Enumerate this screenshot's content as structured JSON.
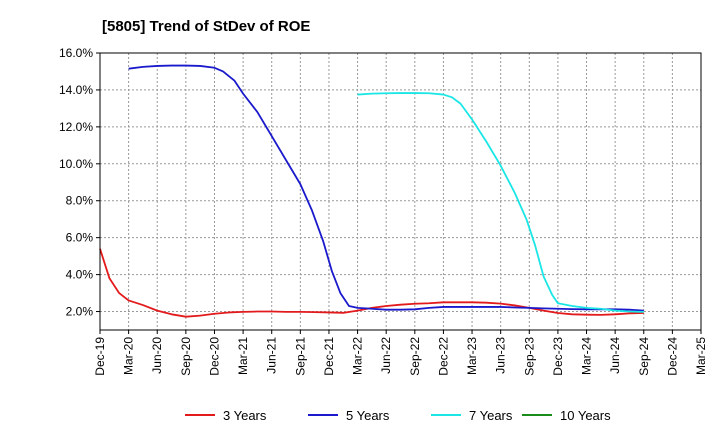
{
  "chart_data": {
    "type": "line",
    "title": "[5805]  Trend of StDev of ROE",
    "xlabel": "",
    "ylabel": "",
    "ylim": [
      1.0,
      16.0
    ],
    "y_ticks": [
      "2.0%",
      "4.0%",
      "6.0%",
      "8.0%",
      "10.0%",
      "12.0%",
      "14.0%",
      "16.0%"
    ],
    "y_tick_values": [
      2,
      4,
      6,
      8,
      10,
      12,
      14,
      16
    ],
    "x_ticks": [
      "Dec-19",
      "Mar-20",
      "Jun-20",
      "Sep-20",
      "Dec-20",
      "Mar-21",
      "Jun-21",
      "Sep-21",
      "Dec-21",
      "Mar-22",
      "Jun-22",
      "Sep-22",
      "Dec-22",
      "Mar-23",
      "Jun-23",
      "Sep-23",
      "Dec-23",
      "Mar-24",
      "Jun-24",
      "Sep-24",
      "Dec-24",
      "Mar-25"
    ],
    "grid": true,
    "legend_position": "bottom",
    "series": [
      {
        "name": "3 Years",
        "color": "#e31a1c",
        "points": [
          [
            0,
            5.4
          ],
          [
            0.33,
            3.8
          ],
          [
            0.67,
            3.0
          ],
          [
            1,
            2.6
          ],
          [
            1.5,
            2.35
          ],
          [
            2,
            2.05
          ],
          [
            2.5,
            1.85
          ],
          [
            3,
            1.72
          ],
          [
            3.5,
            1.78
          ],
          [
            4,
            1.88
          ],
          [
            4.5,
            1.95
          ],
          [
            5,
            1.98
          ],
          [
            5.5,
            2.0
          ],
          [
            6,
            2.0
          ],
          [
            6.5,
            1.98
          ],
          [
            7,
            1.98
          ],
          [
            7.5,
            1.97
          ],
          [
            8,
            1.95
          ],
          [
            8.5,
            1.93
          ],
          [
            9,
            2.05
          ],
          [
            9.5,
            2.2
          ],
          [
            10,
            2.3
          ],
          [
            10.5,
            2.37
          ],
          [
            11,
            2.42
          ],
          [
            11.5,
            2.45
          ],
          [
            12,
            2.5
          ],
          [
            12.5,
            2.5
          ],
          [
            13,
            2.5
          ],
          [
            13.5,
            2.48
          ],
          [
            14,
            2.43
          ],
          [
            14.5,
            2.33
          ],
          [
            15,
            2.2
          ],
          [
            15.5,
            2.05
          ],
          [
            16,
            1.92
          ],
          [
            16.5,
            1.85
          ],
          [
            17,
            1.83
          ],
          [
            17.5,
            1.82
          ],
          [
            18,
            1.85
          ],
          [
            18.5,
            1.9
          ],
          [
            19,
            1.92
          ]
        ]
      },
      {
        "name": "5 Years",
        "color": "#1a1acc",
        "points": [
          [
            1,
            15.15
          ],
          [
            1.5,
            15.25
          ],
          [
            2,
            15.3
          ],
          [
            2.5,
            15.32
          ],
          [
            3,
            15.32
          ],
          [
            3.5,
            15.3
          ],
          [
            4,
            15.2
          ],
          [
            4.3,
            15.0
          ],
          [
            4.7,
            14.5
          ],
          [
            5,
            13.8
          ],
          [
            5.5,
            12.8
          ],
          [
            6,
            11.5
          ],
          [
            6.5,
            10.2
          ],
          [
            7,
            8.9
          ],
          [
            7.4,
            7.5
          ],
          [
            7.8,
            5.8
          ],
          [
            8.1,
            4.2
          ],
          [
            8.4,
            3.0
          ],
          [
            8.7,
            2.3
          ],
          [
            9,
            2.2
          ],
          [
            9.5,
            2.15
          ],
          [
            10,
            2.1
          ],
          [
            10.5,
            2.1
          ],
          [
            11,
            2.12
          ],
          [
            11.5,
            2.2
          ],
          [
            12,
            2.25
          ],
          [
            12.5,
            2.25
          ],
          [
            13,
            2.25
          ],
          [
            13.5,
            2.25
          ],
          [
            14,
            2.25
          ],
          [
            14.5,
            2.22
          ],
          [
            15,
            2.2
          ],
          [
            15.5,
            2.17
          ],
          [
            16,
            2.15
          ],
          [
            16.5,
            2.13
          ],
          [
            17,
            2.12
          ],
          [
            17.5,
            2.12
          ],
          [
            18,
            2.12
          ],
          [
            18.5,
            2.1
          ],
          [
            19,
            2.05
          ]
        ]
      },
      {
        "name": "7 Years",
        "color": "#1ae6e6",
        "points": [
          [
            9,
            13.75
          ],
          [
            9.5,
            13.8
          ],
          [
            10,
            13.82
          ],
          [
            10.5,
            13.83
          ],
          [
            11,
            13.83
          ],
          [
            11.5,
            13.82
          ],
          [
            12,
            13.75
          ],
          [
            12.3,
            13.6
          ],
          [
            12.6,
            13.25
          ],
          [
            13,
            12.4
          ],
          [
            13.5,
            11.2
          ],
          [
            14,
            9.9
          ],
          [
            14.5,
            8.4
          ],
          [
            14.9,
            7.0
          ],
          [
            15.2,
            5.6
          ],
          [
            15.5,
            3.9
          ],
          [
            15.8,
            2.9
          ],
          [
            16,
            2.45
          ],
          [
            16.5,
            2.3
          ],
          [
            17,
            2.2
          ],
          [
            17.5,
            2.15
          ],
          [
            18,
            2.05
          ],
          [
            18.5,
            2.0
          ],
          [
            19,
            1.98
          ]
        ]
      },
      {
        "name": "10 Years",
        "color": "#1a8c1a",
        "points": []
      }
    ]
  }
}
